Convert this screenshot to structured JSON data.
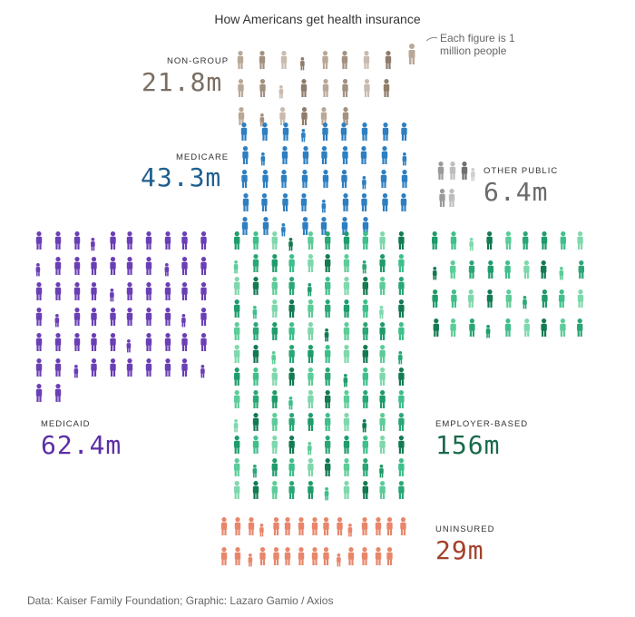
{
  "chart_data": {
    "type": "pictograph",
    "title": "How Americans get health insurance",
    "note": "Each figure is 1 million people",
    "unit_per_figure": 1,
    "categories": [
      {
        "key": "non_group",
        "label": "NON-GROUP",
        "value": 21.8,
        "display": "21.8m",
        "color": "#a08b78"
      },
      {
        "key": "medicare",
        "label": "MEDICARE",
        "value": 43.3,
        "display": "43.3m",
        "color": "#2d7fc1"
      },
      {
        "key": "other_public",
        "label": "OTHER PUBLIC",
        "value": 6.4,
        "display": "6.4m",
        "color": "#8c8c8c"
      },
      {
        "key": "medicaid",
        "label": "MEDICAID",
        "value": 62.4,
        "display": "62.4m",
        "color": "#6a3fb5"
      },
      {
        "key": "employer_based",
        "label": "EMPLOYER-BASED",
        "value": 156,
        "display": "156m",
        "color": "#1f9c6b"
      },
      {
        "key": "uninsured",
        "label": "UNINSURED",
        "value": 29,
        "display": "29m",
        "color": "#d45a3a"
      }
    ]
  },
  "credit": "Data: Kaiser Family Foundation; Graphic: Lazaro Gamio / Axios"
}
